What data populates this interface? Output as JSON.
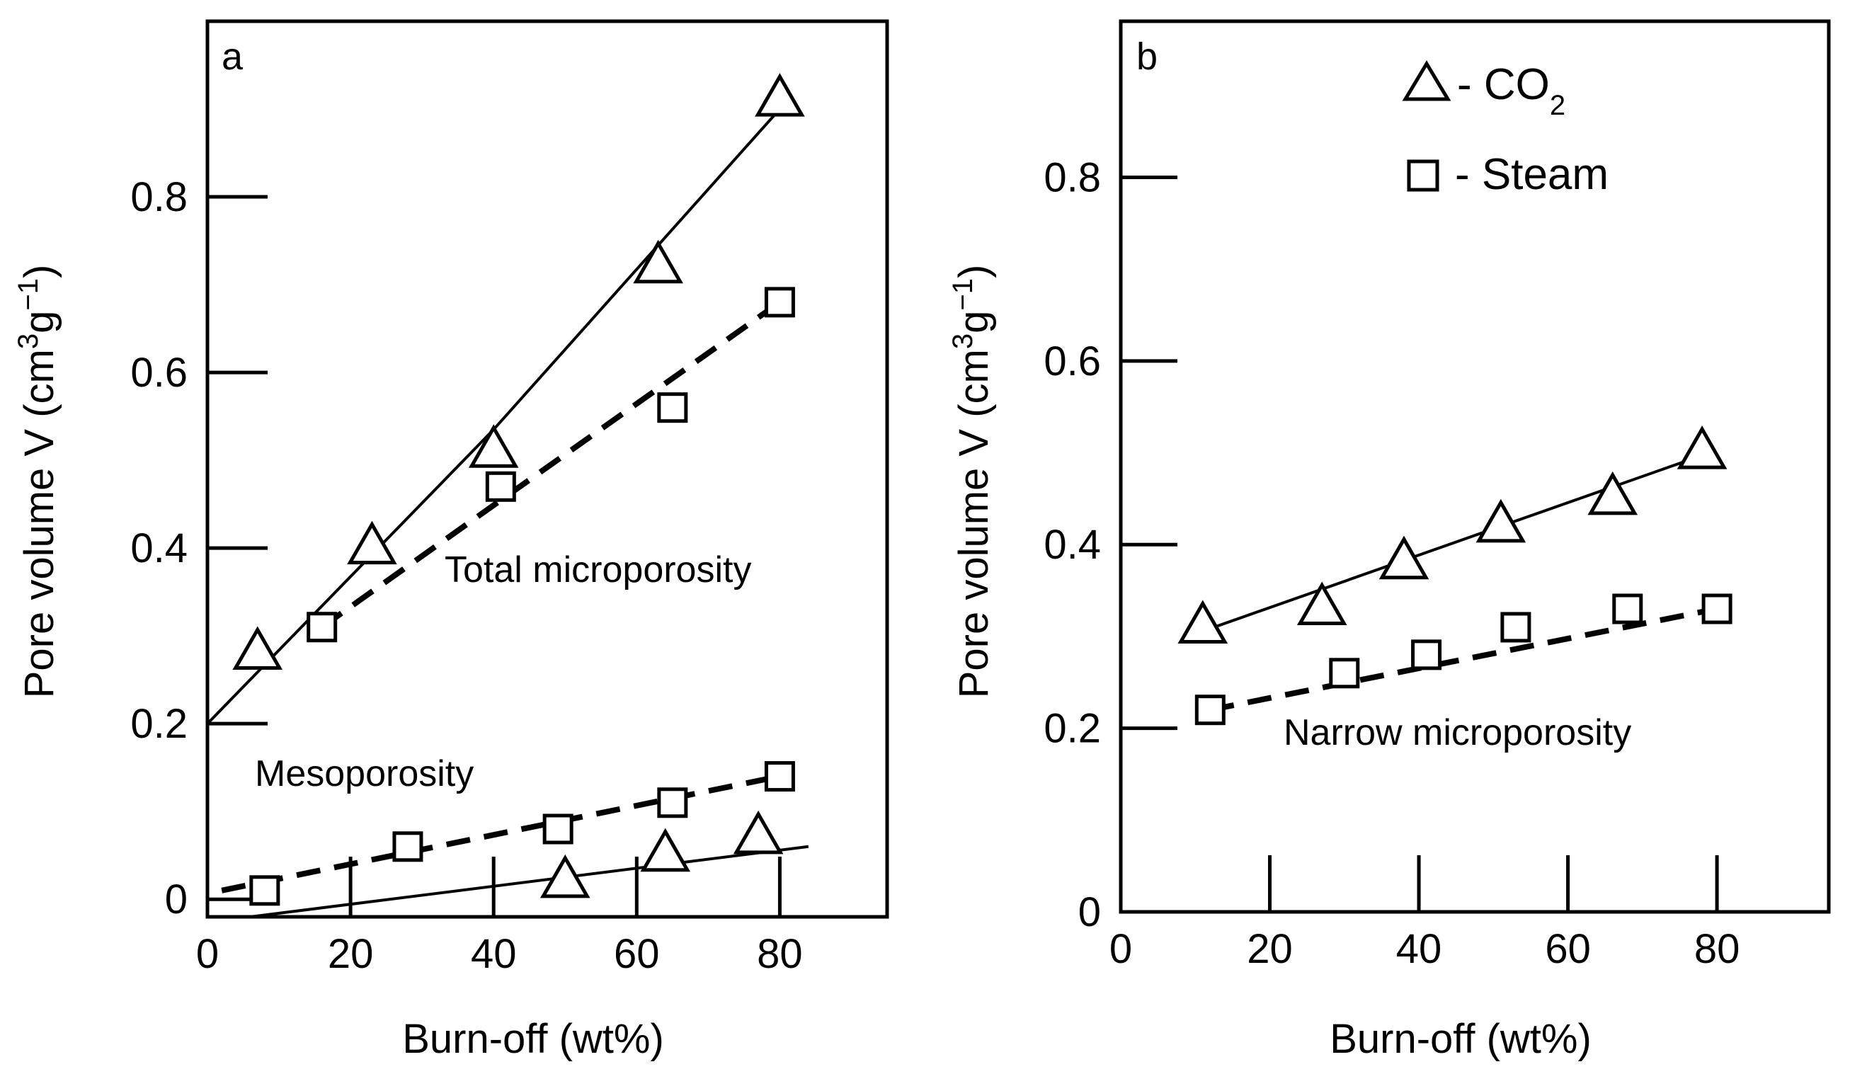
{
  "chart_data": [
    {
      "type": "line",
      "panel": "a",
      "xlabel": "Burn-off (wt%)",
      "ylabel": "Pore volume V (cm³g⁻¹)",
      "xlim": [
        0,
        95
      ],
      "ylim": [
        -0.02,
        1.0
      ],
      "xticks": [
        0,
        20,
        40,
        60,
        80
      ],
      "xtick_labels": [
        "0",
        "20",
        "40",
        "60",
        "80"
      ],
      "yticks": [
        0,
        0.2,
        0.4,
        0.6,
        0.8
      ],
      "ytick_labels": [
        "0",
        "0.2",
        "0.4",
        "0.6",
        "0.8"
      ],
      "annotations": [
        "Total microporosity",
        "Mesoporosity"
      ],
      "series": [
        {
          "name": "Total microporosity - CO2",
          "marker": "triangle",
          "line": "solid",
          "x": [
            7,
            23,
            40,
            63,
            80
          ],
          "y": [
            0.28,
            0.4,
            0.51,
            0.72,
            0.91
          ],
          "fit": {
            "x": [
              0,
              40,
              80
            ],
            "y": [
              0.2,
              0.535,
              0.9
            ]
          }
        },
        {
          "name": "Total microporosity - Steam",
          "marker": "square",
          "line": "dashed",
          "x": [
            16,
            41,
            65,
            80
          ],
          "y": [
            0.31,
            0.47,
            0.56,
            0.68
          ],
          "fit": {
            "x": [
              16,
              80
            ],
            "y": [
              0.31,
              0.68
            ]
          }
        },
        {
          "name": "Mesoporosity - CO2",
          "marker": "triangle",
          "line": "solid",
          "x": [
            50,
            64,
            77
          ],
          "y": [
            0.02,
            0.05,
            0.07
          ],
          "fit": {
            "x": [
              6,
              84
            ],
            "y": [
              -0.02,
              0.06
            ]
          }
        },
        {
          "name": "Mesoporosity - Steam",
          "marker": "square",
          "line": "dashed",
          "x": [
            8,
            28,
            49,
            65,
            80
          ],
          "y": [
            0.01,
            0.06,
            0.08,
            0.11,
            0.14
          ],
          "fit": {
            "x": [
              2,
              80
            ],
            "y": [
              0.01,
              0.14
            ]
          }
        }
      ]
    },
    {
      "type": "line",
      "panel": "b",
      "xlabel": "Burn-off (wt%)",
      "ylabel": "Pore volume V (cm³g⁻¹)",
      "xlim": [
        0,
        95
      ],
      "ylim": [
        0,
        0.97
      ],
      "xticks": [
        0,
        20,
        40,
        60,
        80
      ],
      "xtick_labels": [
        "0",
        "20",
        "40",
        "60",
        "80"
      ],
      "yticks": [
        0,
        0.2,
        0.4,
        0.6,
        0.8
      ],
      "ytick_labels": [
        "0",
        "0.2",
        "0.4",
        "0.6",
        "0.8"
      ],
      "annotations": [
        "Narrow microporosity"
      ],
      "legend": [
        {
          "marker": "triangle",
          "label": "- CO",
          "subscript": "2"
        },
        {
          "marker": "square",
          "label": "- Steam"
        }
      ],
      "series": [
        {
          "name": "CO2",
          "marker": "triangle",
          "line": "solid",
          "x": [
            11,
            27,
            38,
            51,
            66,
            78
          ],
          "y": [
            0.31,
            0.33,
            0.38,
            0.42,
            0.45,
            0.5
          ],
          "fit": {
            "x": [
              9,
              79
            ],
            "y": [
              0.3,
              0.5
            ]
          }
        },
        {
          "name": "Steam",
          "marker": "square",
          "line": "dashed",
          "x": [
            12,
            30,
            41,
            53,
            68,
            80
          ],
          "y": [
            0.22,
            0.26,
            0.28,
            0.31,
            0.33,
            0.33
          ],
          "fit": {
            "x": [
              12,
              80
            ],
            "y": [
              0.22,
              0.33
            ]
          }
        }
      ]
    }
  ]
}
